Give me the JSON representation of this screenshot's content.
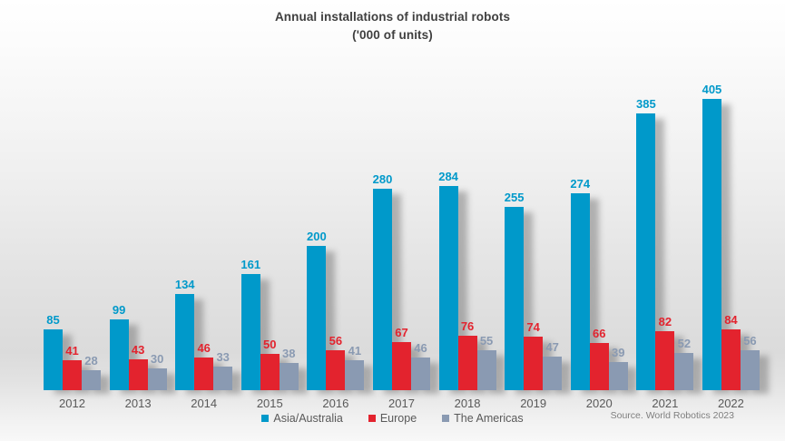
{
  "title": {
    "line1": "Annual installations of industrial robots",
    "line2": "('000 of units)"
  },
  "source": "Source. World Robotics 2023",
  "colors": {
    "asia_australia": "#0099CA",
    "europe": "#E3232E",
    "the_americas": "#8A9AB2",
    "title_text": "#3F3F3F",
    "axis_text": "#595959",
    "source_text": "#7F7F7F"
  },
  "chart_data": {
    "type": "bar",
    "title": "Annual installations of industrial robots ('000 of units)",
    "xlabel": "",
    "ylabel": "",
    "categories": [
      "2012",
      "2013",
      "2014",
      "2015",
      "2016",
      "2017",
      "2018",
      "2019",
      "2020",
      "2021",
      "2022"
    ],
    "series": [
      {
        "name": "Asia/Australia",
        "color": "#0099CA",
        "values": [
          85,
          99,
          134,
          161,
          200,
          280,
          284,
          255,
          274,
          385,
          405
        ]
      },
      {
        "name": "Europe",
        "color": "#E3232E",
        "values": [
          41,
          43,
          46,
          50,
          56,
          67,
          76,
          74,
          66,
          82,
          84
        ]
      },
      {
        "name": "The Americas",
        "color": "#8A9AB2",
        "values": [
          28,
          30,
          33,
          38,
          41,
          46,
          55,
          47,
          39,
          52,
          56
        ]
      }
    ],
    "ylim": [
      0,
      410
    ],
    "grid": false,
    "axis_lines": false,
    "value_labels": true,
    "legend_position": "bottom"
  }
}
